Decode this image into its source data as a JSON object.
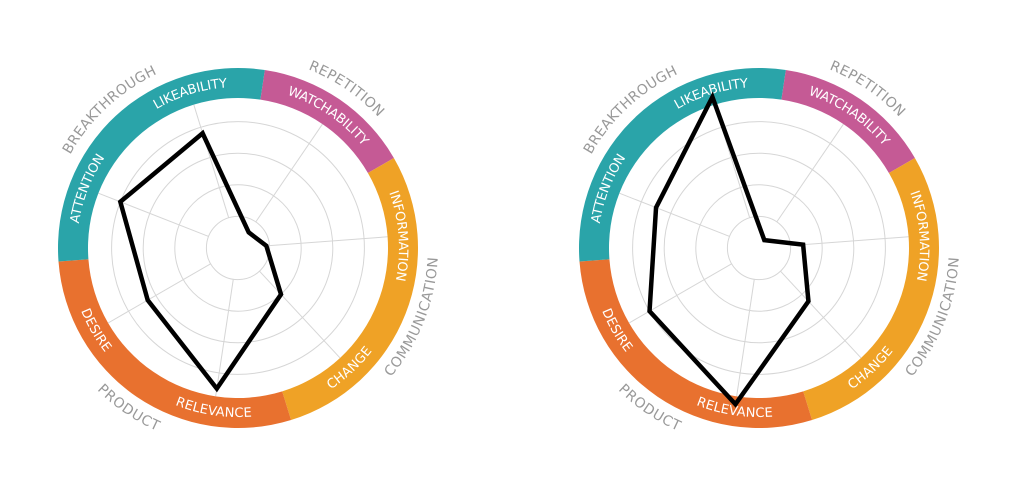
{
  "chart_data": [
    {
      "type": "radar",
      "rlim": [
        0,
        5
      ],
      "grid": true,
      "groups": [
        {
          "label": "REPETITION",
          "color": "#C55A95",
          "segments": [
            "WATCHABILITY"
          ]
        },
        {
          "label": "COMMUNICATION",
          "color": "#EFA226",
          "segments": [
            "INFORMATION",
            "CHANGE"
          ]
        },
        {
          "label": "PRODUCT",
          "color": "#E8712F",
          "segments": [
            "RELEVANCE",
            "DESIRE"
          ]
        },
        {
          "label": "BREAKTHROUGH",
          "color": "#2AA4A9",
          "segments": [
            "ATTENTION",
            "LIKEABILITY"
          ]
        }
      ],
      "categories": [
        "WATCHABILITY",
        "INFORMATION",
        "CHANGE",
        "RELEVANCE",
        "DESIRE",
        "ATTENTION",
        "LIKEABILITY"
      ],
      "values": [
        0.6,
        0.9,
        2.0,
        4.5,
        3.3,
        4.0,
        3.8
      ]
    },
    {
      "type": "radar",
      "rlim": [
        0,
        5
      ],
      "grid": true,
      "groups": [
        {
          "label": "REPETITION",
          "color": "#C55A95",
          "segments": [
            "WATCHABILITY"
          ]
        },
        {
          "label": "COMMUNICATION",
          "color": "#EFA226",
          "segments": [
            "INFORMATION",
            "CHANGE"
          ]
        },
        {
          "label": "PRODUCT",
          "color": "#E8712F",
          "segments": [
            "RELEVANCE",
            "DESIRE"
          ]
        },
        {
          "label": "BREAKTHROUGH",
          "color": "#2AA4A9",
          "segments": [
            "ATTENTION",
            "LIKEABILITY"
          ]
        }
      ],
      "categories": [
        "WATCHABILITY",
        "INFORMATION",
        "CHANGE",
        "RELEVANCE",
        "DESIRE",
        "ATTENTION",
        "LIKEABILITY"
      ],
      "values": [
        0.3,
        1.4,
        2.3,
        5.0,
        4.0,
        3.5,
        5.0
      ]
    }
  ]
}
